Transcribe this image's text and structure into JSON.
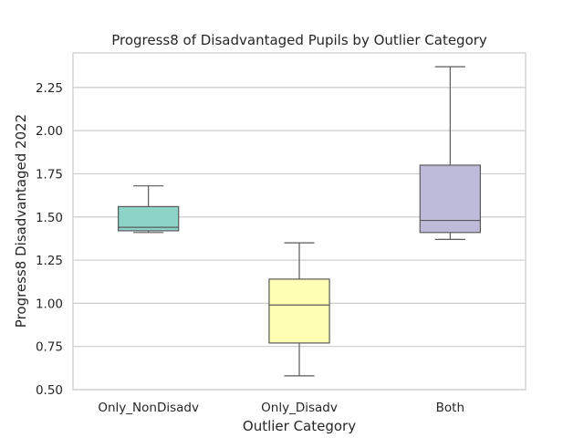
{
  "chart_data": {
    "type": "box",
    "title": "Progress8 of Disadvantaged Pupils by Outlier Category",
    "xlabel": "Outlier Category",
    "ylabel": "Progress8 Disadvantaged 2022",
    "ylim": [
      0.5,
      2.45
    ],
    "yticks": [
      "0.50",
      "0.75",
      "1.00",
      "1.25",
      "1.50",
      "1.75",
      "2.00",
      "2.25"
    ],
    "grid": true,
    "categories": [
      "Only_NonDisadv",
      "Only_Disadv",
      "Both"
    ],
    "boxes": [
      {
        "category": "Only_NonDisadv",
        "whisker_low": 1.41,
        "q1": 1.42,
        "median": 1.44,
        "q3": 1.56,
        "whisker_high": 1.68,
        "color": "#8dd3c7"
      },
      {
        "category": "Only_Disadv",
        "whisker_low": 0.58,
        "q1": 0.77,
        "median": 0.99,
        "q3": 1.14,
        "whisker_high": 1.35,
        "color": "#ffffb3"
      },
      {
        "category": "Both",
        "whisker_low": 1.37,
        "q1": 1.41,
        "median": 1.48,
        "q3": 1.8,
        "whisker_high": 2.37,
        "color": "#bebada"
      }
    ]
  }
}
